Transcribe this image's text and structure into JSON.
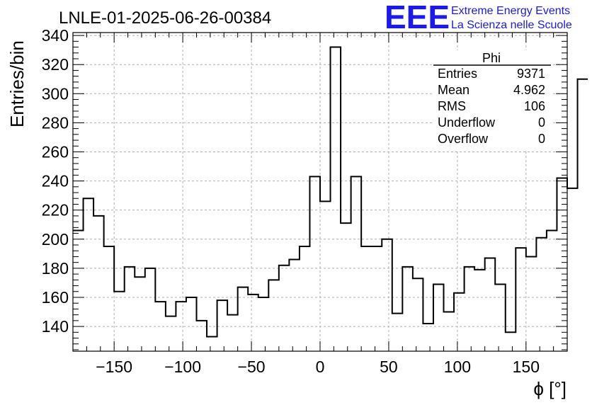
{
  "chart_data": {
    "type": "bar",
    "title": "LNLE-01-2025-06-26-00384",
    "xlabel": "ϕ [°]",
    "ylabel": "Entries/bin",
    "xlim": [
      -180,
      180
    ],
    "ylim": [
      123,
      342
    ],
    "x_ticks": [
      -150,
      -100,
      -50,
      0,
      50,
      100,
      150
    ],
    "y_ticks": [
      140,
      160,
      180,
      200,
      220,
      240,
      260,
      280,
      300,
      320,
      340
    ],
    "grid": true,
    "bin_width": 7.5,
    "values": [
      206,
      228,
      216,
      195,
      164,
      181,
      174,
      180,
      157,
      147,
      157,
      160,
      144,
      133,
      158,
      148,
      167,
      162,
      160,
      172,
      182,
      186,
      195,
      243,
      226,
      332,
      211,
      243,
      195,
      195,
      200,
      149,
      181,
      173,
      142,
      169,
      150,
      163,
      181,
      179,
      187,
      169,
      136,
      194,
      188,
      201,
      206,
      242,
      235,
      310
    ],
    "stats": {
      "name": "Phi",
      "rows": [
        {
          "label": "Entries",
          "value": "9371"
        },
        {
          "label": "Mean",
          "value": "4.962"
        },
        {
          "label": "RMS",
          "value": "106"
        },
        {
          "label": "Underflow",
          "value": "0"
        },
        {
          "label": "Overflow",
          "value": "0"
        }
      ]
    }
  },
  "logo": {
    "text": "EEE",
    "line1": "Extreme Energy Events",
    "line2": "La Scienza nelle Scuole",
    "color": "#1a1aee"
  }
}
